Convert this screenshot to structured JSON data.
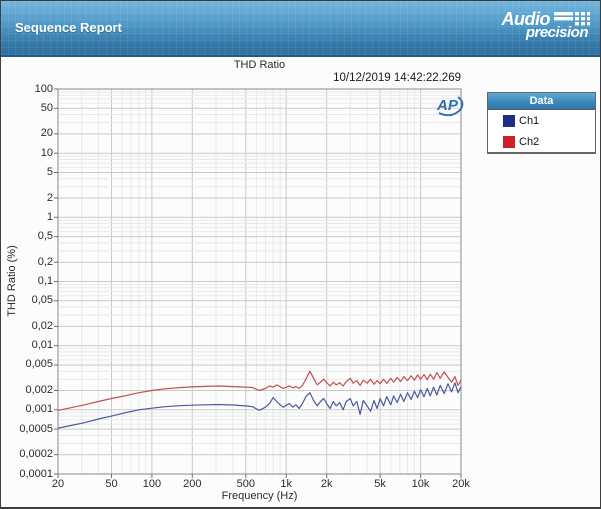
{
  "header": {
    "title": "Sequence Report",
    "brand_line1": "Audio",
    "brand_line2": "precision"
  },
  "report": {
    "chart_title": "THD Ratio",
    "timestamp": "10/12/2019 14:42:22.269",
    "watermark": "AP"
  },
  "legend": {
    "title": "Data",
    "items": [
      {
        "label": "Ch1",
        "color": "#1e2d87"
      },
      {
        "label": "Ch2",
        "color": "#cc2127"
      }
    ]
  },
  "chart_data": {
    "type": "line",
    "title": "THD Ratio",
    "xlabel": "Frequency (Hz)",
    "ylabel": "THD Ratio (%)",
    "x_scale": "log",
    "y_scale": "log",
    "xlim": [
      20,
      20000
    ],
    "ylim": [
      0.0001,
      100
    ],
    "grid": true,
    "legend_position": "right",
    "x_ticks": [
      {
        "v": 20,
        "label": "20"
      },
      {
        "v": 50,
        "label": "50"
      },
      {
        "v": 100,
        "label": "100"
      },
      {
        "v": 200,
        "label": "200"
      },
      {
        "v": 500,
        "label": "500"
      },
      {
        "v": 1000,
        "label": "1k"
      },
      {
        "v": 2000,
        "label": "2k"
      },
      {
        "v": 5000,
        "label": "5k"
      },
      {
        "v": 10000,
        "label": "10k"
      },
      {
        "v": 20000,
        "label": "20k"
      }
    ],
    "y_ticks": [
      {
        "v": 100,
        "label": "100"
      },
      {
        "v": 50,
        "label": "50"
      },
      {
        "v": 20,
        "label": "20"
      },
      {
        "v": 10,
        "label": "10"
      },
      {
        "v": 5,
        "label": "5"
      },
      {
        "v": 2,
        "label": "2"
      },
      {
        "v": 1,
        "label": "1"
      },
      {
        "v": 0.5,
        "label": "0,5"
      },
      {
        "v": 0.2,
        "label": "0,2"
      },
      {
        "v": 0.1,
        "label": "0,1"
      },
      {
        "v": 0.05,
        "label": "0,05"
      },
      {
        "v": 0.02,
        "label": "0,02"
      },
      {
        "v": 0.01,
        "label": "0,01"
      },
      {
        "v": 0.005,
        "label": "0,005"
      },
      {
        "v": 0.002,
        "label": "0,002"
      },
      {
        "v": 0.001,
        "label": "0,001"
      },
      {
        "v": 0.0005,
        "label": "0,0005"
      },
      {
        "v": 0.0002,
        "label": "0,0002"
      },
      {
        "v": 0.0001,
        "label": "0,0001"
      }
    ],
    "series": [
      {
        "name": "Ch1",
        "stroke": "#4a5a9e",
        "points": [
          [
            20,
            0.00052
          ],
          [
            25,
            0.00057
          ],
          [
            31.5,
            0.00063
          ],
          [
            40,
            0.00072
          ],
          [
            50,
            0.0008
          ],
          [
            63,
            0.0009
          ],
          [
            80,
            0.001
          ],
          [
            100,
            0.00106
          ],
          [
            125,
            0.00112
          ],
          [
            160,
            0.00116
          ],
          [
            200,
            0.00118
          ],
          [
            250,
            0.0012
          ],
          [
            315,
            0.00121
          ],
          [
            400,
            0.00119
          ],
          [
            450,
            0.00117
          ],
          [
            500,
            0.00115
          ],
          [
            560,
            0.00112
          ],
          [
            630,
            0.00098
          ],
          [
            700,
            0.0011
          ],
          [
            750,
            0.00125
          ],
          [
            800,
            0.00155
          ],
          [
            850,
            0.00135
          ],
          [
            900,
            0.0012
          ],
          [
            950,
            0.0011
          ],
          [
            1000,
            0.00118
          ],
          [
            1060,
            0.00125
          ],
          [
            1120,
            0.0011
          ],
          [
            1180,
            0.0012
          ],
          [
            1250,
            0.00105
          ],
          [
            1320,
            0.00125
          ],
          [
            1400,
            0.0016
          ],
          [
            1500,
            0.00185
          ],
          [
            1600,
            0.0014
          ],
          [
            1700,
            0.00115
          ],
          [
            1800,
            0.00135
          ],
          [
            1900,
            0.0015
          ],
          [
            2000,
            0.00125
          ],
          [
            2120,
            0.00105
          ],
          [
            2240,
            0.00135
          ],
          [
            2360,
            0.00115
          ],
          [
            2500,
            0.0013
          ],
          [
            2650,
            0.001
          ],
          [
            2800,
            0.00135
          ],
          [
            3000,
            0.0015
          ],
          [
            3150,
            0.00115
          ],
          [
            3350,
            0.00135
          ],
          [
            3550,
            0.00085
          ],
          [
            3750,
            0.0014
          ],
          [
            4000,
            0.00115
          ],
          [
            4250,
            0.00095
          ],
          [
            4500,
            0.0014
          ],
          [
            4750,
            0.00105
          ],
          [
            5000,
            0.0015
          ],
          [
            5300,
            0.00115
          ],
          [
            5600,
            0.0016
          ],
          [
            6000,
            0.0012
          ],
          [
            6300,
            0.00165
          ],
          [
            6700,
            0.0013
          ],
          [
            7100,
            0.00175
          ],
          [
            7500,
            0.00135
          ],
          [
            8000,
            0.00185
          ],
          [
            8500,
            0.00145
          ],
          [
            9000,
            0.00195
          ],
          [
            9500,
            0.00155
          ],
          [
            10000,
            0.00205
          ],
          [
            10600,
            0.0016
          ],
          [
            11200,
            0.00215
          ],
          [
            11800,
            0.00165
          ],
          [
            12500,
            0.00225
          ],
          [
            13200,
            0.0017
          ],
          [
            14000,
            0.0024
          ],
          [
            15000,
            0.0018
          ],
          [
            16000,
            0.00255
          ],
          [
            17000,
            0.0019
          ],
          [
            18000,
            0.00265
          ],
          [
            19000,
            0.00185
          ],
          [
            20000,
            0.0023
          ]
        ]
      },
      {
        "name": "Ch2",
        "stroke": "#c0504d",
        "points": [
          [
            20,
            0.00098
          ],
          [
            25,
            0.00108
          ],
          [
            31.5,
            0.0012
          ],
          [
            40,
            0.00135
          ],
          [
            50,
            0.0015
          ],
          [
            63,
            0.00165
          ],
          [
            80,
            0.00185
          ],
          [
            100,
            0.002
          ],
          [
            125,
            0.00213
          ],
          [
            160,
            0.00222
          ],
          [
            200,
            0.00228
          ],
          [
            250,
            0.00232
          ],
          [
            315,
            0.00235
          ],
          [
            400,
            0.0023
          ],
          [
            450,
            0.00228
          ],
          [
            500,
            0.00225
          ],
          [
            560,
            0.00223
          ],
          [
            630,
            0.002
          ],
          [
            700,
            0.00215
          ],
          [
            750,
            0.00235
          ],
          [
            800,
            0.00225
          ],
          [
            850,
            0.00245
          ],
          [
            900,
            0.0023
          ],
          [
            950,
            0.00215
          ],
          [
            1000,
            0.00225
          ],
          [
            1060,
            0.00235
          ],
          [
            1120,
            0.0022
          ],
          [
            1180,
            0.0023
          ],
          [
            1250,
            0.00215
          ],
          [
            1320,
            0.0024
          ],
          [
            1400,
            0.003
          ],
          [
            1500,
            0.004
          ],
          [
            1600,
            0.0031
          ],
          [
            1700,
            0.00245
          ],
          [
            1800,
            0.0027
          ],
          [
            1900,
            0.003
          ],
          [
            2000,
            0.00265
          ],
          [
            2120,
            0.00235
          ],
          [
            2240,
            0.0027
          ],
          [
            2360,
            0.00245
          ],
          [
            2500,
            0.00265
          ],
          [
            2650,
            0.00235
          ],
          [
            2800,
            0.00275
          ],
          [
            3000,
            0.0031
          ],
          [
            3150,
            0.0026
          ],
          [
            3350,
            0.00285
          ],
          [
            3550,
            0.0024
          ],
          [
            3750,
            0.0029
          ],
          [
            4000,
            0.0026
          ],
          [
            4250,
            0.003
          ],
          [
            4500,
            0.0025
          ],
          [
            4750,
            0.00285
          ],
          [
            5000,
            0.00255
          ],
          [
            5300,
            0.003
          ],
          [
            5600,
            0.0026
          ],
          [
            6000,
            0.0031
          ],
          [
            6300,
            0.0027
          ],
          [
            6700,
            0.0032
          ],
          [
            7100,
            0.00275
          ],
          [
            7500,
            0.0033
          ],
          [
            8000,
            0.00285
          ],
          [
            8500,
            0.0034
          ],
          [
            9000,
            0.0029
          ],
          [
            9500,
            0.0035
          ],
          [
            10000,
            0.003
          ],
          [
            10600,
            0.00355
          ],
          [
            11200,
            0.00295
          ],
          [
            11800,
            0.0036
          ],
          [
            12500,
            0.003
          ],
          [
            13200,
            0.0038
          ],
          [
            14000,
            0.0031
          ],
          [
            15000,
            0.0039
          ],
          [
            16000,
            0.0032
          ],
          [
            17000,
            0.0027
          ],
          [
            18000,
            0.0033
          ],
          [
            19000,
            0.0024
          ],
          [
            20000,
            0.0029
          ]
        ]
      }
    ]
  }
}
